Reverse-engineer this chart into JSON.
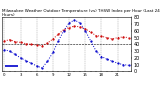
{
  "title": "Milwaukee Weather Outdoor Temperature (vs) THSW Index per Hour (Last 24 Hours)",
  "hours": [
    0,
    1,
    2,
    3,
    4,
    5,
    6,
    7,
    8,
    9,
    10,
    11,
    12,
    13,
    14,
    15,
    16,
    17,
    18,
    19,
    20,
    21,
    22,
    23
  ],
  "temp": [
    45,
    47,
    44,
    43,
    41,
    40,
    39,
    38,
    42,
    48,
    55,
    62,
    65,
    67,
    66,
    63,
    58,
    53,
    52,
    50,
    48,
    50,
    51,
    50
  ],
  "thsw": [
    32,
    30,
    25,
    20,
    16,
    12,
    8,
    5,
    15,
    28,
    45,
    60,
    72,
    76,
    72,
    60,
    45,
    30,
    22,
    18,
    15,
    12,
    10,
    9
  ],
  "temp_color": "#cc0000",
  "thsw_color": "#0000cc",
  "bg_color": "#ffffff",
  "grid_color": "#999999",
  "ref_line_color": "#000000",
  "ref_line_y": 40,
  "ylim": [
    0,
    80
  ],
  "ytick_labels": [
    "80",
    "70",
    "60",
    "50",
    "40",
    "30",
    "20",
    "10",
    "0"
  ],
  "yticks": [
    80,
    70,
    60,
    50,
    40,
    30,
    20,
    10,
    0
  ],
  "ylabel_fontsize": 3.5,
  "title_fontsize": 3.0,
  "tick_fontsize": 2.8,
  "line_width": 0.7,
  "marker_size": 1.2
}
